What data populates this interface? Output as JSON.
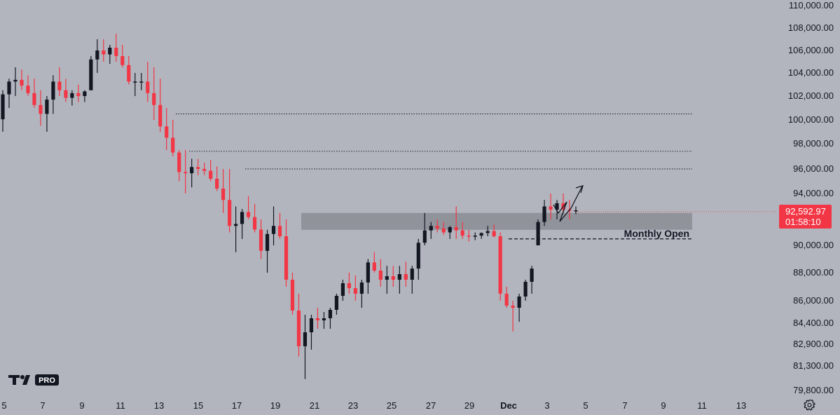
{
  "logo": {
    "text": "PRO"
  },
  "chart_data": {
    "type": "candlestick",
    "y_ticks": [
      {
        "label": "110,000.00",
        "value": 110000
      },
      {
        "label": "108,000.00",
        "value": 108000
      },
      {
        "label": "106,000.00",
        "value": 106000
      },
      {
        "label": "104,000.00",
        "value": 104000
      },
      {
        "label": "102,000.00",
        "value": 102000
      },
      {
        "label": "100,000.00",
        "value": 100000
      },
      {
        "label": "98,000.00",
        "value": 98000
      },
      {
        "label": "96,000.00",
        "value": 96000
      },
      {
        "label": "94,000.00",
        "value": 94000
      },
      {
        "label": "90,000.00",
        "value": 90000
      },
      {
        "label": "88,000.00",
        "value": 88000
      },
      {
        "label": "86,000.00",
        "value": 86000
      },
      {
        "label": "84,400.00",
        "value": 84400
      },
      {
        "label": "82,900.00",
        "value": 82900
      },
      {
        "label": "81,300.00",
        "value": 81300
      },
      {
        "label": "79,800.00",
        "value": 79800
      }
    ],
    "x_ticks": [
      "5",
      "7",
      "9",
      "11",
      "13",
      "15",
      "17",
      "19",
      "21",
      "23",
      "25",
      "27",
      "29",
      "Dec",
      "3",
      "5",
      "7",
      "9",
      "11",
      "13"
    ],
    "current_price": {
      "label": "92,592.97",
      "value": 92592.97,
      "countdown": "01:58:10",
      "color": "#f23645"
    },
    "zone": {
      "low": 91200,
      "high": 92500,
      "label": "Monthly Open",
      "open_level": 90500
    },
    "resistance_levels": [
      100500,
      97400,
      96000
    ],
    "colors": {
      "up": "#131722",
      "down": "#f23645",
      "zone": "#8a8d94",
      "text": "#131722"
    },
    "series": [
      {
        "low": 99000,
        "high": 102500
      },
      {
        "low": 101000,
        "high": 103500
      },
      {
        "low": 102000,
        "high": 104500
      },
      {
        "low": 102500,
        "high": 104300
      },
      {
        "low": 102000,
        "high": 103800
      },
      {
        "low": 101000,
        "high": 103500
      },
      {
        "low": 99500,
        "high": 102500
      },
      {
        "low": 99000,
        "high": 102000
      },
      {
        "low": 100500,
        "high": 103800
      },
      {
        "low": 102000,
        "high": 104500
      },
      {
        "low": 101500,
        "high": 103500
      },
      {
        "low": 101200,
        "high": 102500
      },
      {
        "low": 101500,
        "high": 103000
      },
      {
        "low": 101500,
        "high": 102500
      },
      {
        "low": 102500,
        "high": 105500
      },
      {
        "low": 104000,
        "high": 107000
      },
      {
        "low": 105000,
        "high": 107000
      },
      {
        "low": 104800,
        "high": 106500
      },
      {
        "low": 105000,
        "high": 107500
      },
      {
        "low": 104500,
        "high": 106500
      },
      {
        "low": 103000,
        "high": 105500
      },
      {
        "low": 102000,
        "high": 104000
      },
      {
        "low": 102500,
        "high": 104000
      },
      {
        "low": 101500,
        "high": 105000
      },
      {
        "low": 100000,
        "high": 104500
      },
      {
        "low": 99000,
        "high": 103500
      },
      {
        "low": 97500,
        "high": 101000
      },
      {
        "low": 97000,
        "high": 100000
      },
      {
        "low": 95000,
        "high": 97500
      },
      {
        "low": 94000,
        "high": 97500
      },
      {
        "low": 94500,
        "high": 96800
      },
      {
        "low": 95500,
        "high": 96800
      },
      {
        "low": 95500,
        "high": 96500
      },
      {
        "low": 95000,
        "high": 96700
      },
      {
        "low": 94200,
        "high": 96200
      },
      {
        "low": 92500,
        "high": 96000
      },
      {
        "low": 91000,
        "high": 96000
      },
      {
        "low": 89500,
        "high": 93000
      },
      {
        "low": 90500,
        "high": 92800
      },
      {
        "low": 92000,
        "high": 93800
      },
      {
        "low": 91000,
        "high": 93200
      },
      {
        "low": 89000,
        "high": 92000
      },
      {
        "low": 88000,
        "high": 91200
      },
      {
        "low": 90000,
        "high": 93000
      },
      {
        "low": 90500,
        "high": 92500
      },
      {
        "low": 87000,
        "high": 92000
      },
      {
        "low": 85000,
        "high": 88000
      },
      {
        "low": 82000,
        "high": 86500
      },
      {
        "low": 80500,
        "high": 85000
      },
      {
        "low": 82500,
        "high": 85000
      },
      {
        "low": 84000,
        "high": 85500
      },
      {
        "low": 84000,
        "high": 85200
      },
      {
        "low": 84000,
        "high": 85500
      },
      {
        "low": 85000,
        "high": 86500
      },
      {
        "low": 86000,
        "high": 87500
      },
      {
        "low": 86500,
        "high": 88000
      },
      {
        "low": 86000,
        "high": 87800
      },
      {
        "low": 85500,
        "high": 87500
      },
      {
        "low": 86500,
        "high": 89000
      },
      {
        "low": 88000,
        "high": 89500
      },
      {
        "low": 87000,
        "high": 89000
      },
      {
        "low": 86500,
        "high": 88500
      },
      {
        "low": 87000,
        "high": 88500
      },
      {
        "low": 86500,
        "high": 88500
      },
      {
        "low": 87000,
        "high": 88800
      },
      {
        "low": 86500,
        "high": 88500
      },
      {
        "low": 87500,
        "high": 90500
      },
      {
        "low": 90000,
        "high": 92500
      },
      {
        "low": 90500,
        "high": 91800
      },
      {
        "low": 91000,
        "high": 92000
      },
      {
        "low": 90800,
        "high": 91800
      },
      {
        "low": 90500,
        "high": 91500
      },
      {
        "low": 90500,
        "high": 93000
      },
      {
        "low": 90500,
        "high": 91800
      },
      {
        "low": 90300,
        "high": 91200
      },
      {
        "low": 90400,
        "high": 91000
      },
      {
        "low": 90500,
        "high": 91000
      },
      {
        "low": 90700,
        "high": 91500
      },
      {
        "low": 90600,
        "high": 91600
      },
      {
        "low": 86000,
        "high": 91000
      },
      {
        "low": 85500,
        "high": 87000
      },
      {
        "low": 83800,
        "high": 86000
      },
      {
        "low": 84500,
        "high": 86500
      },
      {
        "low": 86000,
        "high": 87500
      },
      {
        "low": 86500,
        "high": 88500
      },
      {
        "low": 90000,
        "high": 92000
      },
      {
        "low": 91500,
        "high": 93500
      },
      {
        "low": 92000,
        "high": 94000
      },
      {
        "low": 92000,
        "high": 93500
      },
      {
        "low": 92500,
        "high": 94000
      },
      {
        "low": 92000,
        "high": 93500
      },
      {
        "low": 92400,
        "high": 93000
      }
    ]
  }
}
